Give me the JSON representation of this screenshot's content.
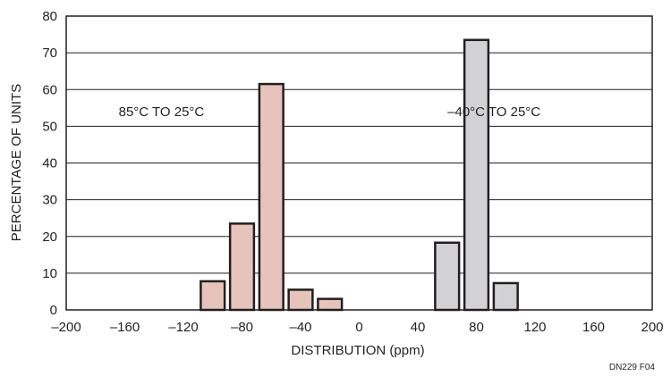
{
  "chart_data": {
    "type": "bar",
    "xlabel": "DISTRIBUTION (ppm)",
    "ylabel": "PERCENTAGE OF UNITS",
    "xlim": [
      -200,
      200
    ],
    "ylim": [
      0,
      80
    ],
    "x_ticks": [
      -200,
      -160,
      -120,
      -80,
      -40,
      0,
      40,
      80,
      120,
      160,
      200
    ],
    "x_tick_labels": [
      "–200",
      "–160",
      "–120",
      "–80",
      "–40",
      "0",
      "40",
      "80",
      "120",
      "160",
      "200"
    ],
    "y_ticks": [
      0,
      10,
      20,
      30,
      40,
      50,
      60,
      70,
      80
    ],
    "y_tick_labels": [
      "0",
      "10",
      "20",
      "30",
      "40",
      "50",
      "60",
      "70",
      "80"
    ],
    "bin_width": 20,
    "grid": "horizontal",
    "series": [
      {
        "name": "85°C TO 25°C",
        "color": "#e6c3bb",
        "x": [
          -100,
          -80,
          -60,
          -40,
          -20
        ],
        "values": [
          7.8,
          23.5,
          61.5,
          5.5,
          3
        ]
      },
      {
        "name": "–40°C TO 25°C",
        "color": "#d2d2d4",
        "x": [
          60,
          80,
          100
        ],
        "values": [
          18.3,
          73.5,
          7.3
        ]
      }
    ],
    "annotations": [
      {
        "text": "85°C TO 25°C",
        "x": -135,
        "y": 54
      },
      {
        "text": "–40°C TO 25°C",
        "x": 92,
        "y": 54
      }
    ]
  },
  "figure_id": "DN229 F04"
}
